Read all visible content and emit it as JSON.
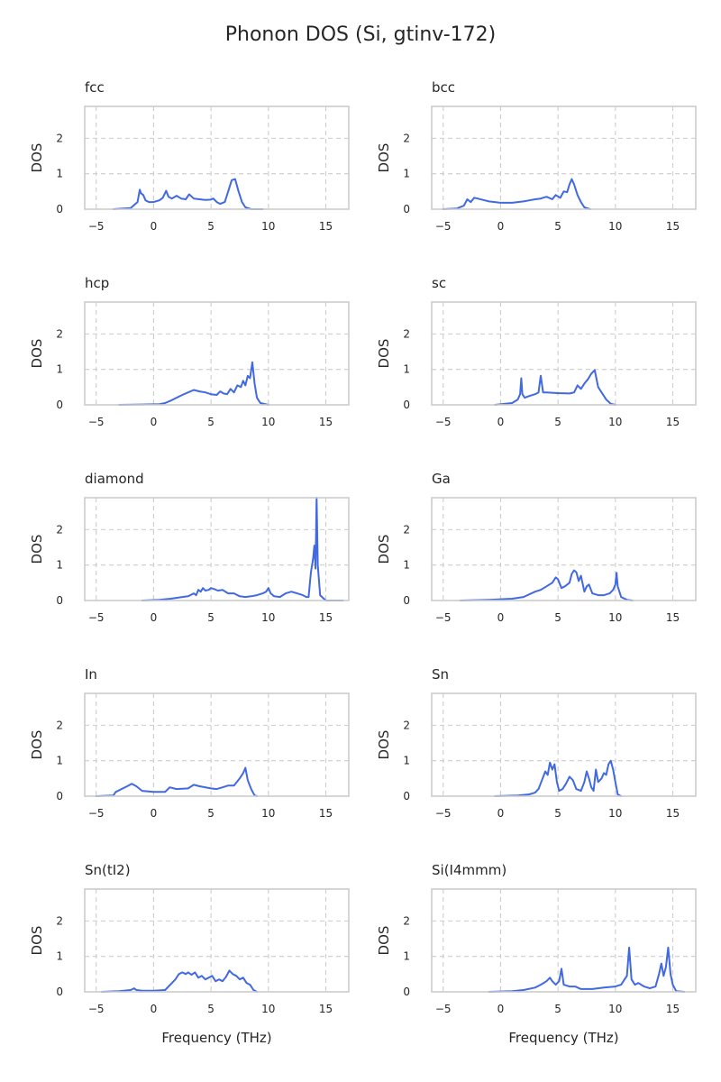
{
  "figure": {
    "title": "Phonon DOS (Si, gtinv-172)"
  },
  "style": {
    "line_color": "#4169e1",
    "grid_color": "#cccccc",
    "frame_color": "#cccccc",
    "text_color": "#262626",
    "background": "#ffffff"
  },
  "chart_data": [
    {
      "type": "line",
      "title": "fcc",
      "xlabel": "",
      "ylabel": "DOS",
      "xlim": [
        -6,
        17
      ],
      "ylim": [
        0,
        2.9
      ],
      "xticks": [
        -5,
        0,
        5,
        10,
        15
      ],
      "yticks": [
        0,
        1,
        2
      ],
      "grid": true,
      "x": [
        -3.5,
        -2.0,
        -1.4,
        -1.2,
        -1.1,
        -0.9,
        -0.7,
        -0.4,
        0,
        0.5,
        0.8,
        1.1,
        1.3,
        1.6,
        2.0,
        2.4,
        2.8,
        3.1,
        3.5,
        4.0,
        4.5,
        5.0,
        5.2,
        5.5,
        5.8,
        6.2,
        6.5,
        6.8,
        7.1,
        7.4,
        7.7,
        8.0,
        8.5,
        9.5
      ],
      "y": [
        0,
        0.03,
        0.2,
        0.55,
        0.45,
        0.4,
        0.25,
        0.2,
        0.2,
        0.25,
        0.32,
        0.52,
        0.35,
        0.3,
        0.38,
        0.3,
        0.28,
        0.42,
        0.3,
        0.28,
        0.26,
        0.27,
        0.3,
        0.2,
        0.15,
        0.2,
        0.5,
        0.82,
        0.85,
        0.5,
        0.2,
        0.05,
        0,
        0
      ]
    },
    {
      "type": "line",
      "title": "bcc",
      "xlabel": "",
      "ylabel": "DOS",
      "xlim": [
        -6,
        17
      ],
      "ylim": [
        0,
        2.9
      ],
      "xticks": [
        -5,
        0,
        5,
        10,
        15
      ],
      "yticks": [
        0,
        1,
        2
      ],
      "grid": true,
      "x": [
        -5.0,
        -3.8,
        -3.2,
        -2.9,
        -2.6,
        -2.3,
        -2.0,
        -1.5,
        -1.0,
        0,
        1.0,
        1.5,
        2.0,
        2.5,
        3.0,
        3.5,
        4.0,
        4.5,
        4.8,
        5.2,
        5.5,
        5.8,
        6.0,
        6.2,
        6.4,
        6.7,
        7.0,
        7.3,
        7.8
      ],
      "y": [
        0,
        0.02,
        0.1,
        0.28,
        0.2,
        0.32,
        0.3,
        0.26,
        0.22,
        0.18,
        0.18,
        0.2,
        0.22,
        0.25,
        0.28,
        0.3,
        0.35,
        0.28,
        0.4,
        0.32,
        0.5,
        0.48,
        0.7,
        0.85,
        0.7,
        0.4,
        0.2,
        0.05,
        0
      ]
    },
    {
      "type": "line",
      "title": "hcp",
      "xlabel": "",
      "ylabel": "DOS",
      "xlim": [
        -6,
        17
      ],
      "ylim": [
        0,
        2.9
      ],
      "xticks": [
        -5,
        0,
        5,
        10,
        15
      ],
      "yticks": [
        0,
        1,
        2
      ],
      "grid": true,
      "x": [
        -3.0,
        -1.0,
        0.5,
        1.0,
        1.5,
        2.0,
        2.5,
        3.0,
        3.5,
        4.0,
        4.5,
        5.0,
        5.5,
        5.8,
        6.1,
        6.4,
        6.7,
        7.0,
        7.3,
        7.6,
        7.8,
        8.0,
        8.2,
        8.4,
        8.6,
        8.8,
        9.0,
        9.3,
        10.0
      ],
      "y": [
        0,
        0.01,
        0.02,
        0.05,
        0.12,
        0.2,
        0.28,
        0.35,
        0.42,
        0.38,
        0.35,
        0.3,
        0.28,
        0.38,
        0.32,
        0.3,
        0.45,
        0.35,
        0.55,
        0.5,
        0.68,
        0.55,
        0.82,
        0.75,
        1.2,
        0.6,
        0.2,
        0.05,
        0
      ]
    },
    {
      "type": "line",
      "title": "sc",
      "xlabel": "",
      "ylabel": "DOS",
      "xlim": [
        -6,
        17
      ],
      "ylim": [
        0,
        2.9
      ],
      "xticks": [
        -5,
        0,
        5,
        10,
        15
      ],
      "yticks": [
        0,
        1,
        2
      ],
      "grid": true,
      "x": [
        -0.5,
        1.0,
        1.5,
        1.7,
        1.8,
        1.9,
        2.1,
        2.5,
        3.0,
        3.3,
        3.5,
        3.7,
        4.0,
        5.0,
        6.0,
        6.4,
        6.7,
        7.0,
        7.3,
        7.6,
        7.9,
        8.2,
        8.5,
        8.9,
        9.2,
        9.6,
        10.0
      ],
      "y": [
        0,
        0.05,
        0.15,
        0.3,
        0.75,
        0.3,
        0.2,
        0.25,
        0.3,
        0.35,
        0.82,
        0.35,
        0.35,
        0.33,
        0.32,
        0.35,
        0.55,
        0.45,
        0.6,
        0.72,
        0.88,
        0.98,
        0.5,
        0.3,
        0.15,
        0.03,
        0
      ]
    },
    {
      "type": "line",
      "title": "diamond",
      "xlabel": "",
      "ylabel": "DOS",
      "xlim": [
        -6,
        17
      ],
      "ylim": [
        0,
        2.9
      ],
      "xticks": [
        -5,
        0,
        5,
        10,
        15
      ],
      "yticks": [
        0,
        1,
        2
      ],
      "grid": true,
      "x": [
        -1.0,
        0.5,
        1.5,
        2.5,
        3.0,
        3.5,
        3.7,
        3.9,
        4.1,
        4.3,
        4.5,
        4.8,
        5.0,
        5.3,
        5.6,
        6.0,
        6.5,
        7.0,
        7.5,
        8.0,
        8.5,
        9.0,
        9.5,
        9.8,
        10.0,
        10.2,
        10.5,
        11.0,
        11.5,
        12.0,
        12.5,
        13.0,
        13.3,
        13.5,
        13.7,
        13.9,
        14.0,
        14.1,
        14.2,
        14.3,
        14.5,
        15.0,
        16.5
      ],
      "y": [
        0,
        0.02,
        0.05,
        0.1,
        0.12,
        0.2,
        0.15,
        0.3,
        0.25,
        0.35,
        0.28,
        0.3,
        0.35,
        0.32,
        0.28,
        0.3,
        0.2,
        0.2,
        0.12,
        0.1,
        0.12,
        0.15,
        0.2,
        0.25,
        0.35,
        0.2,
        0.12,
        0.1,
        0.2,
        0.25,
        0.2,
        0.15,
        0.1,
        0.1,
        0.8,
        1.2,
        1.55,
        0.9,
        2.9,
        1.0,
        0.15,
        0,
        0
      ]
    },
    {
      "type": "line",
      "title": "Ga",
      "xlabel": "",
      "ylabel": "DOS",
      "xlim": [
        -6,
        17
      ],
      "ylim": [
        0,
        2.9
      ],
      "xticks": [
        -5,
        0,
        5,
        10,
        15
      ],
      "yticks": [
        0,
        1,
        2
      ],
      "grid": true,
      "x": [
        -3.5,
        -1.0,
        1.0,
        2.0,
        3.0,
        3.5,
        4.0,
        4.5,
        4.8,
        5.0,
        5.3,
        5.6,
        6.0,
        6.2,
        6.4,
        6.6,
        6.8,
        7.0,
        7.3,
        7.5,
        7.7,
        8.0,
        8.5,
        9.0,
        9.5,
        9.8,
        10.0,
        10.1,
        10.2,
        10.5,
        11.0,
        11.5
      ],
      "y": [
        0,
        0.02,
        0.05,
        0.1,
        0.25,
        0.3,
        0.4,
        0.5,
        0.65,
        0.6,
        0.35,
        0.4,
        0.5,
        0.75,
        0.85,
        0.8,
        0.55,
        0.7,
        0.25,
        0.4,
        0.45,
        0.2,
        0.15,
        0.15,
        0.2,
        0.3,
        0.45,
        0.78,
        0.4,
        0.1,
        0.02,
        0
      ]
    },
    {
      "type": "line",
      "title": "In",
      "xlabel": "",
      "ylabel": "DOS",
      "xlim": [
        -6,
        17
      ],
      "ylim": [
        0,
        2.9
      ],
      "xticks": [
        -5,
        0,
        5,
        10,
        15
      ],
      "yticks": [
        0,
        1,
        2
      ],
      "grid": true,
      "x": [
        -5.0,
        -3.5,
        -3.3,
        -2.8,
        -2.3,
        -1.9,
        -1.5,
        -1.0,
        0,
        1.0,
        1.4,
        2.0,
        3.0,
        3.5,
        4.0,
        5.0,
        5.5,
        6.0,
        6.5,
        7.0,
        7.5,
        7.8,
        8.0,
        8.2,
        8.5,
        8.8,
        9.0
      ],
      "y": [
        0,
        0.02,
        0.12,
        0.2,
        0.28,
        0.35,
        0.28,
        0.15,
        0.12,
        0.12,
        0.25,
        0.2,
        0.22,
        0.32,
        0.28,
        0.22,
        0.2,
        0.25,
        0.3,
        0.3,
        0.5,
        0.65,
        0.8,
        0.45,
        0.2,
        0.02,
        0
      ]
    },
    {
      "type": "line",
      "title": "Sn",
      "xlabel": "",
      "ylabel": "DOS",
      "xlim": [
        -6,
        17
      ],
      "ylim": [
        0,
        2.9
      ],
      "xticks": [
        -5,
        0,
        5,
        10,
        15
      ],
      "yticks": [
        0,
        1,
        2
      ],
      "grid": true,
      "x": [
        -0.5,
        1.5,
        2.5,
        3.0,
        3.3,
        3.6,
        3.9,
        4.1,
        4.3,
        4.5,
        4.7,
        4.9,
        5.1,
        5.4,
        5.7,
        6.0,
        6.3,
        6.6,
        7.0,
        7.3,
        7.5,
        7.7,
        7.9,
        8.1,
        8.3,
        8.5,
        8.8,
        9.0,
        9.2,
        9.4,
        9.6,
        9.8,
        10.0,
        10.2,
        10.5
      ],
      "y": [
        0,
        0.02,
        0.05,
        0.1,
        0.2,
        0.45,
        0.7,
        0.6,
        0.95,
        0.75,
        0.9,
        0.4,
        0.15,
        0.2,
        0.35,
        0.55,
        0.45,
        0.2,
        0.15,
        0.4,
        0.7,
        0.5,
        0.25,
        0.15,
        0.75,
        0.4,
        0.5,
        0.65,
        0.6,
        0.9,
        1.0,
        0.75,
        0.4,
        0.05,
        0
      ]
    },
    {
      "type": "line",
      "title": "Sn(tI2)",
      "xlabel": "Frequency (THz)",
      "ylabel": "DOS",
      "xlim": [
        -6,
        17
      ],
      "ylim": [
        0,
        2.9
      ],
      "xticks": [
        -5,
        0,
        5,
        10,
        15
      ],
      "yticks": [
        0,
        1,
        2
      ],
      "grid": true,
      "x": [
        -4.5,
        -3.0,
        -2.0,
        -1.7,
        -1.5,
        -1.0,
        0,
        1.0,
        1.3,
        1.6,
        1.9,
        2.2,
        2.5,
        2.8,
        3.0,
        3.3,
        3.6,
        3.9,
        4.2,
        4.5,
        4.8,
        5.1,
        5.4,
        5.7,
        6.0,
        6.3,
        6.6,
        6.9,
        7.2,
        7.5,
        7.8,
        8.1,
        8.4,
        8.7,
        9.0
      ],
      "y": [
        0,
        0.02,
        0.05,
        0.1,
        0.05,
        0.03,
        0.03,
        0.05,
        0.15,
        0.25,
        0.35,
        0.5,
        0.55,
        0.5,
        0.55,
        0.48,
        0.55,
        0.4,
        0.45,
        0.35,
        0.4,
        0.45,
        0.3,
        0.35,
        0.3,
        0.42,
        0.6,
        0.5,
        0.45,
        0.35,
        0.4,
        0.25,
        0.2,
        0.05,
        0
      ]
    },
    {
      "type": "line",
      "title": "Si(I4mmm)",
      "xlabel": "Frequency (THz)",
      "ylabel": "DOS",
      "xlim": [
        -6,
        17
      ],
      "ylim": [
        0,
        2.9
      ],
      "xticks": [
        -5,
        0,
        5,
        10,
        15
      ],
      "yticks": [
        0,
        1,
        2
      ],
      "grid": true,
      "x": [
        -1.0,
        1.0,
        2.0,
        3.0,
        3.5,
        4.0,
        4.3,
        4.5,
        4.8,
        5.1,
        5.3,
        5.5,
        6.0,
        6.5,
        7.0,
        8.0,
        9.0,
        10.0,
        10.5,
        10.8,
        11.0,
        11.2,
        11.4,
        11.7,
        12.0,
        12.5,
        13.0,
        13.5,
        13.8,
        14.0,
        14.2,
        14.4,
        14.6,
        14.8,
        15.0,
        15.3,
        16.0
      ],
      "y": [
        0,
        0.02,
        0.05,
        0.12,
        0.2,
        0.3,
        0.4,
        0.3,
        0.2,
        0.3,
        0.65,
        0.2,
        0.15,
        0.15,
        0.08,
        0.08,
        0.12,
        0.15,
        0.2,
        0.35,
        0.45,
        1.25,
        0.35,
        0.2,
        0.25,
        0.15,
        0.1,
        0.15,
        0.5,
        0.8,
        0.45,
        0.7,
        1.25,
        0.5,
        0.2,
        0.02,
        0
      ]
    }
  ]
}
